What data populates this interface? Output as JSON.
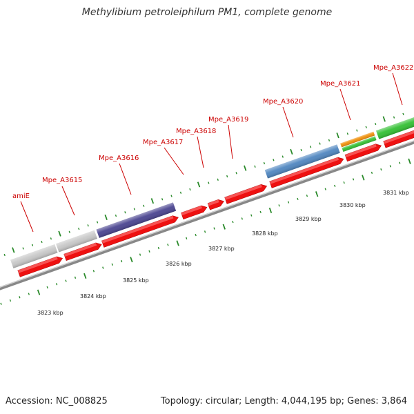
{
  "title": "Methylibium petroleiphilum PM1, complete genome",
  "footer": {
    "accession": "Accession: NC_008825",
    "summary": "Topology: circular; Length: 4,044,195 bp; Genes: 3,864"
  },
  "colors": {
    "cds": "#ee1111",
    "label": "#cc0000",
    "tick": "#2a8a2a",
    "backbone": "#888888",
    "grey_gene": "#c8c8c8",
    "purple_gene": "#4a4490",
    "blue_gene": "#4f86c0",
    "orange_gene": "#f0900a",
    "green_gene": "#33c033",
    "bright_blue_gene": "#1a2aee"
  },
  "gene_labels": [
    "amiE",
    "Mpe_A3615",
    "Mpe_A3616",
    "Mpe_A3617",
    "Mpe_A3618",
    "Mpe_A3619",
    "Mpe_A3620",
    "Mpe_A3621",
    "Mpe_A3622"
  ],
  "kbp_labels": [
    "3823 kbp",
    "3824 kbp",
    "3825 kbp",
    "3826 kbp",
    "3827 kbp",
    "3828 kbp",
    "3829 kbp",
    "3830 kbp",
    "3831 kbp"
  ]
}
